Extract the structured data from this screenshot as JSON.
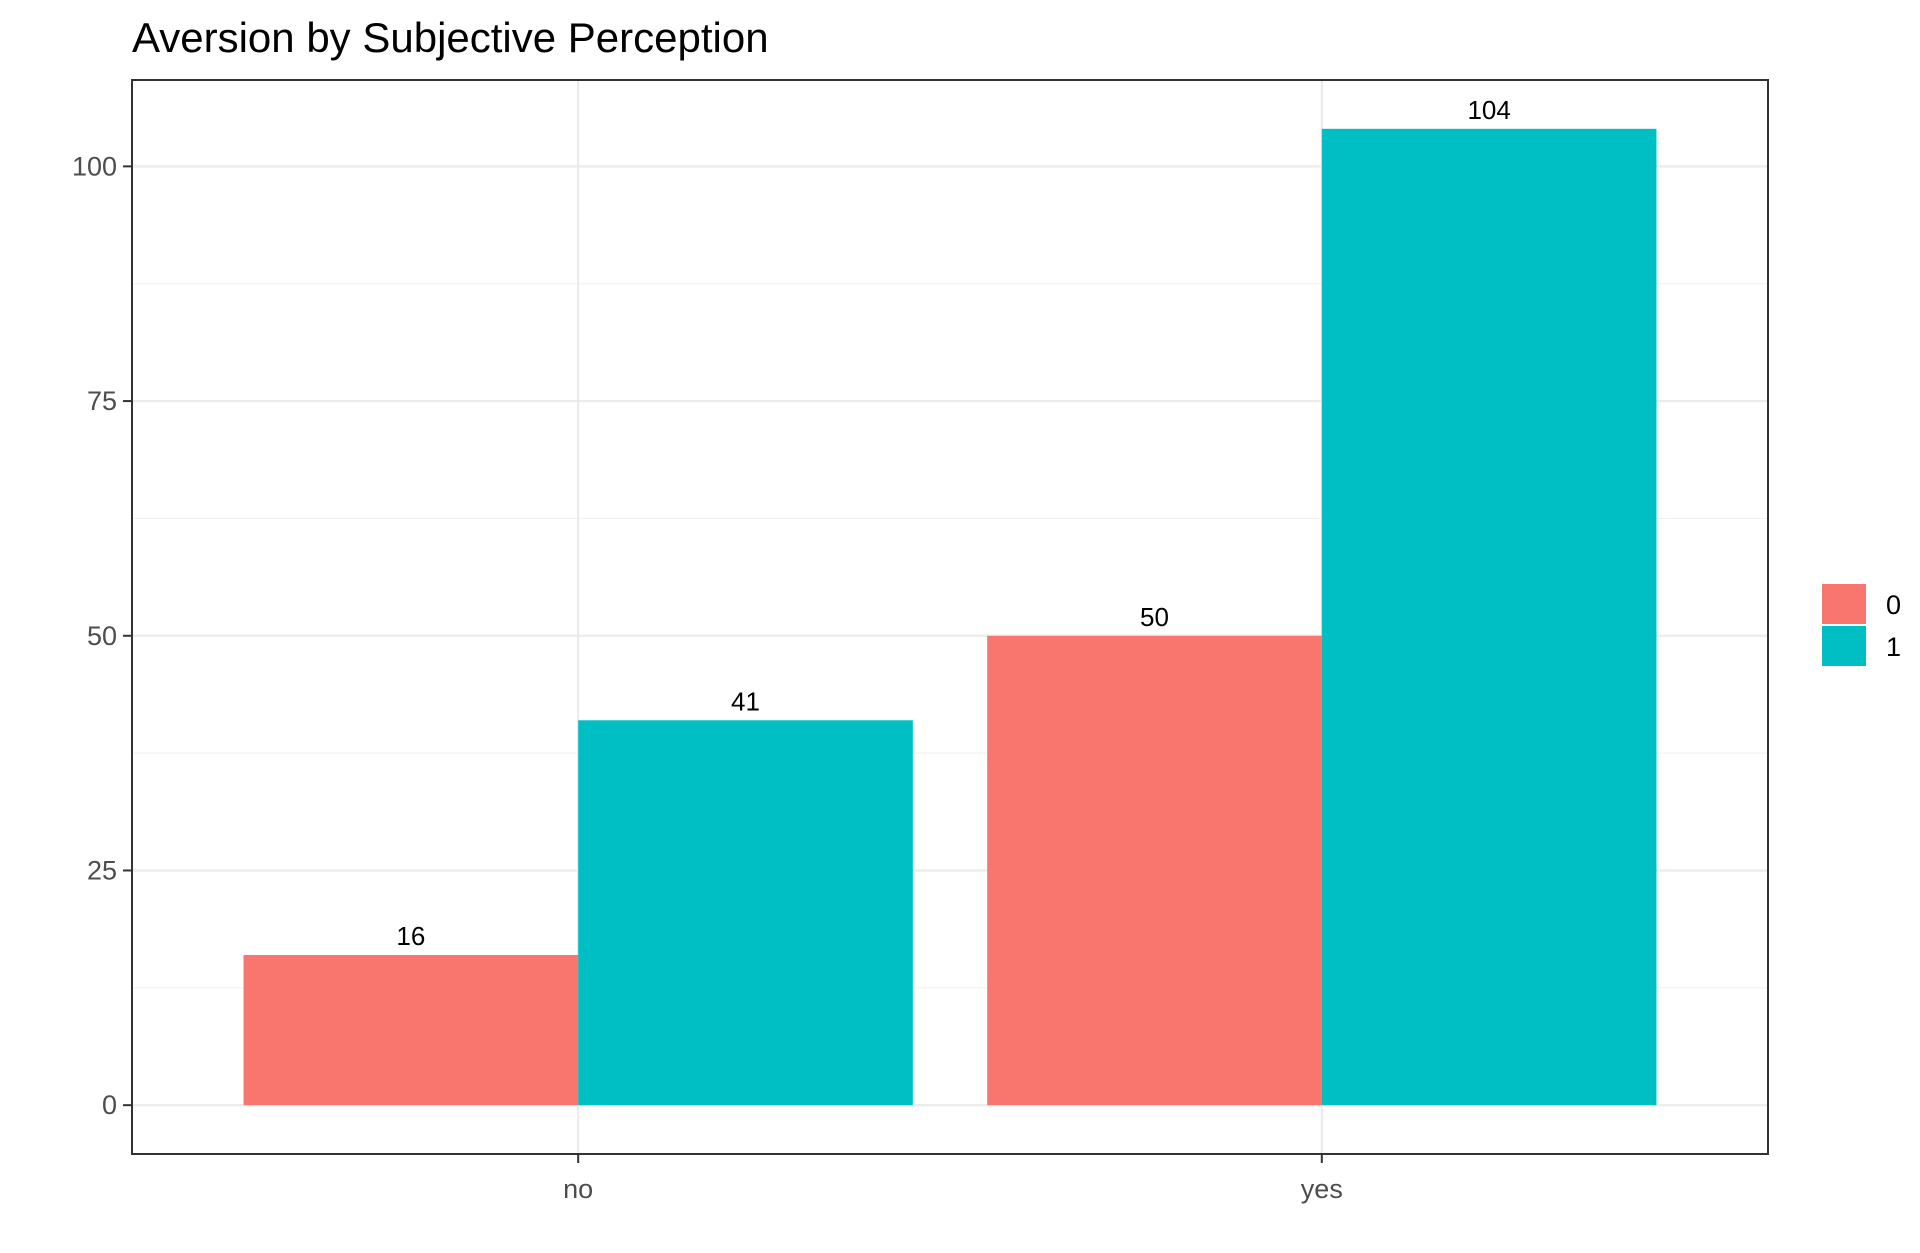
{
  "chart_data": {
    "type": "bar",
    "title": "Aversion by Subjective Perception",
    "xlabel": "",
    "ylabel": "",
    "categories": [
      "no",
      "yes"
    ],
    "series": [
      {
        "name": "0",
        "values": [
          16,
          50
        ],
        "color": "#F8766D"
      },
      {
        "name": "1",
        "values": [
          41,
          104
        ],
        "color": "#00BFC4"
      }
    ],
    "ylim": [
      -5.2,
      109.2
    ],
    "yticks": [
      0,
      25,
      50,
      75,
      100
    ],
    "yticks_minor": [
      12.5,
      37.5,
      62.5,
      87.5
    ],
    "grid": true,
    "data_labels": true,
    "legend": {
      "position": "right",
      "items": [
        "0",
        "1"
      ]
    }
  }
}
